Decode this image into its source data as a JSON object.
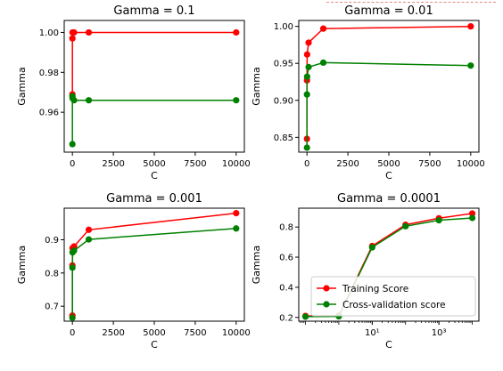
{
  "chart_data": [
    {
      "type": "line",
      "title": "Gamma = 0.1",
      "xlabel": "C",
      "ylabel": "Gamma",
      "x_scale": "linear",
      "xlim": [
        -500,
        10500
      ],
      "ylim": [
        0.94,
        1.006
      ],
      "x_ticks": [
        0,
        2500,
        5000,
        7500,
        10000
      ],
      "x_tick_labels": [
        "0",
        "2500",
        "5000",
        "7500",
        "10000"
      ],
      "y_ticks": [
        0.96,
        0.98,
        1.0
      ],
      "y_tick_labels": [
        "0.96",
        "0.98",
        "1.00"
      ],
      "x": [
        0.1,
        1,
        10,
        100,
        1000,
        10000
      ],
      "series": [
        {
          "name": "Training Score",
          "color": "#ff0000",
          "values": [
            0.969,
            0.997,
            1.0,
            1.0,
            1.0,
            1.0
          ]
        },
        {
          "name": "Cross-validation score",
          "color": "#008000",
          "values": [
            0.944,
            0.968,
            0.967,
            0.966,
            0.966,
            0.966
          ]
        }
      ]
    },
    {
      "type": "line",
      "title": "Gamma = 0.01",
      "xlabel": "C",
      "ylabel": "Gamma",
      "x_scale": "linear",
      "xlim": [
        -500,
        10500
      ],
      "ylim": [
        0.83,
        1.008
      ],
      "x_ticks": [
        0,
        2500,
        5000,
        7500,
        10000
      ],
      "x_tick_labels": [
        "0",
        "2500",
        "5000",
        "7500",
        "10000"
      ],
      "y_ticks": [
        0.85,
        0.9,
        0.95,
        1.0
      ],
      "y_tick_labels": [
        "0.85",
        "0.90",
        "0.95",
        "1.00"
      ],
      "x": [
        0.1,
        1,
        10,
        100,
        1000,
        10000
      ],
      "series": [
        {
          "name": "Training Score",
          "color": "#ff0000",
          "values": [
            0.848,
            0.927,
            0.962,
            0.978,
            0.997,
            1.0
          ]
        },
        {
          "name": "Cross-validation score",
          "color": "#008000",
          "values": [
            0.836,
            0.908,
            0.932,
            0.945,
            0.951,
            0.947
          ]
        }
      ]
    },
    {
      "type": "line",
      "title": "Gamma = 0.001",
      "xlabel": "C",
      "ylabel": "Gamma",
      "x_scale": "linear",
      "xlim": [
        -500,
        10500
      ],
      "ylim": [
        0.655,
        0.995
      ],
      "x_ticks": [
        0,
        2500,
        5000,
        7500,
        10000
      ],
      "x_tick_labels": [
        "0",
        "2500",
        "5000",
        "7500",
        "10000"
      ],
      "y_ticks": [
        0.7,
        0.8,
        0.9
      ],
      "y_tick_labels": [
        "0.7",
        "0.8",
        "0.9"
      ],
      "x": [
        0.1,
        1,
        10,
        100,
        1000,
        10000
      ],
      "series": [
        {
          "name": "Training Score",
          "color": "#ff0000",
          "values": [
            0.672,
            0.823,
            0.875,
            0.88,
            0.93,
            0.98
          ]
        },
        {
          "name": "Cross-validation score",
          "color": "#008000",
          "values": [
            0.665,
            0.816,
            0.862,
            0.867,
            0.901,
            0.934
          ]
        }
      ]
    },
    {
      "type": "line",
      "title": "Gamma = 0.0001",
      "xlabel": "C",
      "ylabel": "Gamma",
      "x_scale": "log",
      "xlim": [
        0.063,
        15800
      ],
      "ylim": [
        0.175,
        0.925
      ],
      "x_ticks": [
        10,
        1000
      ],
      "x_tick_labels": [
        "10¹",
        "10³"
      ],
      "y_ticks": [
        0.2,
        0.4,
        0.6,
        0.8
      ],
      "y_tick_labels": [
        "0.2",
        "0.4",
        "0.6",
        "0.8"
      ],
      "x": [
        0.1,
        1,
        10,
        100,
        1000,
        10000
      ],
      "legend": {
        "position": "lower-right",
        "entries": [
          "Training Score",
          "Cross-validation score"
        ]
      },
      "series": [
        {
          "name": "Training Score",
          "color": "#ff0000",
          "values": [
            0.21,
            0.212,
            0.674,
            0.815,
            0.858,
            0.89
          ]
        },
        {
          "name": "Cross-validation score",
          "color": "#008000",
          "values": [
            0.205,
            0.207,
            0.665,
            0.805,
            0.845,
            0.86
          ]
        }
      ]
    }
  ]
}
